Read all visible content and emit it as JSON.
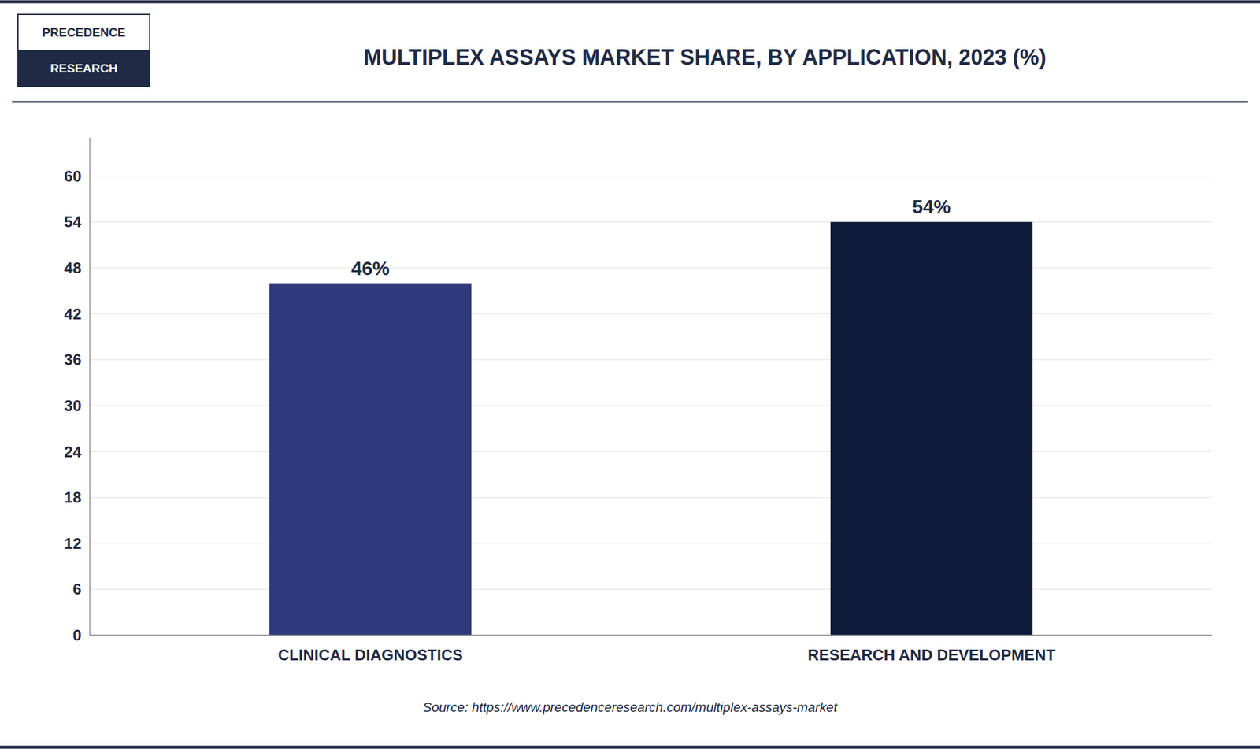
{
  "chart_data": {
    "type": "bar",
    "title": "MULTIPLEX ASSAYS MARKET SHARE, BY APPLICATION, 2023 (%)",
    "categories": [
      "CLINICAL DIAGNOSTICS",
      "RESEARCH AND DEVELOPMENT"
    ],
    "values": [
      46,
      54
    ],
    "value_labels": [
      "46%",
      "54%"
    ],
    "data_labels": true,
    "colors": [
      "#2e3a7c",
      "#0d1a3a"
    ],
    "ylim": [
      0,
      65
    ],
    "yticks": [
      0,
      6,
      12,
      18,
      24,
      30,
      36,
      42,
      48,
      54,
      60
    ],
    "grid": true,
    "annotations": [
      "Source: https://www.precedenceresearch.com/multiplex-assays-market",
      "PRECEDENCE",
      "RESEARCH"
    ]
  }
}
